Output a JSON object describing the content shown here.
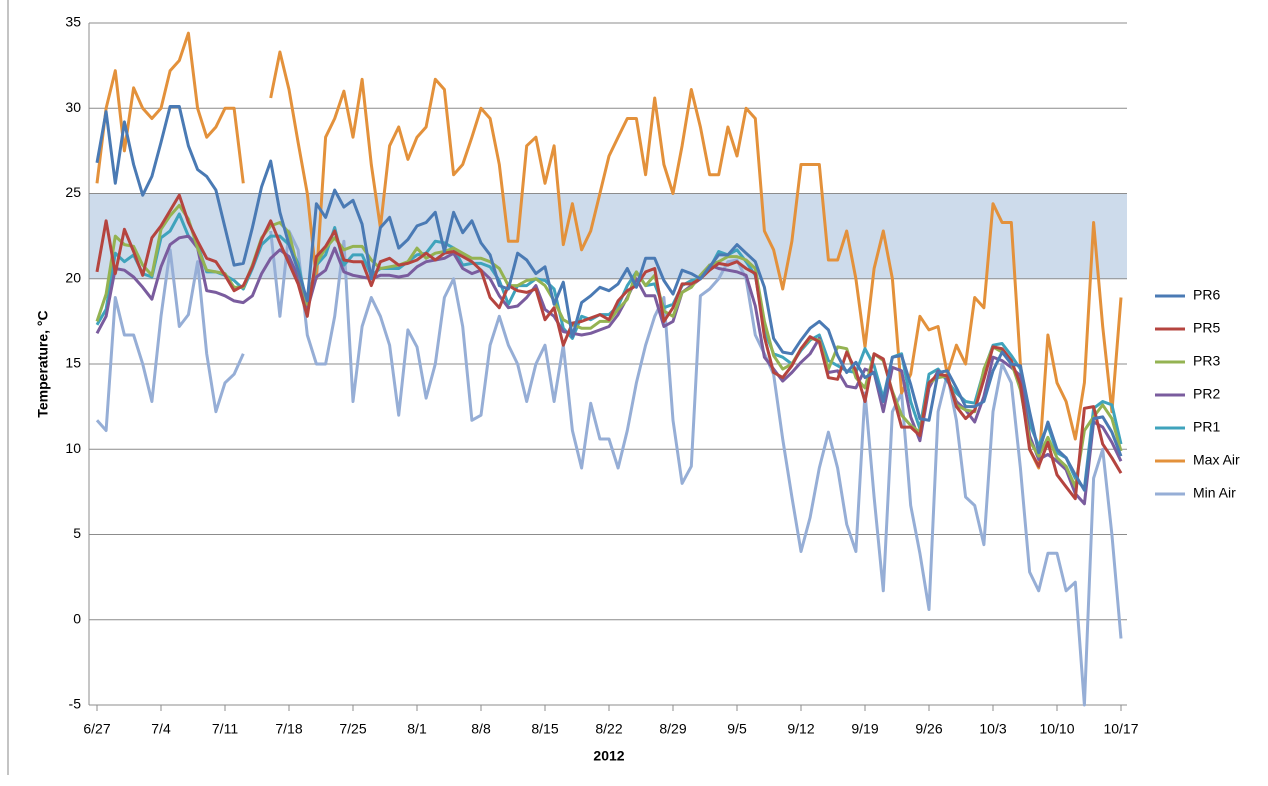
{
  "chart_data": {
    "type": "line",
    "x_label": "2012",
    "y_label": "Temperature, °C",
    "ylim": [
      -5,
      35
    ],
    "yticks": [
      -5,
      0,
      5,
      10,
      15,
      20,
      25,
      30,
      35
    ],
    "grid": true,
    "highlight_range": [
      20,
      25
    ],
    "highlight_color": "#cddbeb",
    "legend": "right",
    "categories": [
      "6/27",
      null,
      null,
      null,
      null,
      null,
      null,
      "7/4",
      null,
      null,
      null,
      null,
      null,
      null,
      "7/11",
      null,
      null,
      null,
      null,
      null,
      null,
      "7/18",
      null,
      null,
      null,
      null,
      null,
      null,
      "7/25",
      null,
      null,
      null,
      null,
      null,
      null,
      "8/1",
      null,
      null,
      null,
      null,
      null,
      null,
      "8/8",
      null,
      null,
      null,
      null,
      null,
      null,
      "8/15",
      null,
      null,
      null,
      null,
      null,
      null,
      "8/22",
      null,
      null,
      null,
      null,
      null,
      null,
      "8/29",
      null,
      null,
      null,
      null,
      null,
      null,
      "9/5",
      null,
      null,
      null,
      null,
      null,
      null,
      "9/12",
      null,
      null,
      null,
      null,
      null,
      null,
      "9/19",
      null,
      null,
      null,
      null,
      null,
      null,
      "9/26",
      null,
      null,
      null,
      null,
      null,
      null,
      "10/3",
      null,
      null,
      null,
      null,
      null,
      null,
      "10/10",
      null,
      null,
      null,
      null,
      null,
      null,
      "10/17"
    ],
    "series": [
      {
        "name": "PR6",
        "color": "#4a7ab4",
        "values": [
          26.8,
          29.8,
          25.6,
          29.2,
          26.7,
          24.9,
          26,
          28,
          30.1,
          30.1,
          27.8,
          26.4,
          26,
          25.2,
          23,
          20.8,
          20.9,
          23,
          25.4,
          26.9,
          23.9,
          22,
          20.5,
          18.7,
          24.4,
          23.6,
          25.2,
          24.2,
          24.6,
          23.2,
          20,
          23,
          23.6,
          21.8,
          22.3,
          23.1,
          23.3,
          23.9,
          21.6,
          23.9,
          22.7,
          23.4,
          22.1,
          21.4,
          19.6,
          19.4,
          21.5,
          21.1,
          20.3,
          20.7,
          18.5,
          19.8,
          16.6,
          18.6,
          19,
          19.5,
          19.3,
          19.7,
          20.6,
          19.5,
          21.2,
          21.2,
          19.9,
          19.1,
          20.5,
          20.3,
          20,
          20.7,
          21.4,
          21.4,
          22,
          21.5,
          21,
          19.5,
          16.5,
          15.7,
          15.6,
          16.4,
          17.1,
          17.5,
          17,
          15.5,
          14.5,
          15.1,
          14.2,
          14.5,
          12.8,
          15.4,
          15.5,
          13.8,
          11.8,
          11.7,
          14.5,
          14.6,
          13.6,
          12.5,
          12.5,
          12.8,
          14.6,
          15.7,
          15,
          14.9,
          12.2,
          9.8,
          11.6,
          10,
          9.5,
          8.5,
          7.6,
          11.8,
          11.9,
          11,
          9.6
        ]
      },
      {
        "name": "PR5",
        "color": "#b5443f",
        "values": [
          20.4,
          23.4,
          20.3,
          22.9,
          21.6,
          20.2,
          22.4,
          23.1,
          24,
          24.9,
          23.3,
          22.2,
          21.2,
          21,
          20.2,
          19.3,
          19.6,
          20.7,
          22.3,
          23.4,
          22.1,
          20.9,
          19.7,
          17.8,
          21.3,
          21.9,
          22.8,
          21.1,
          21,
          21,
          19.6,
          21,
          21.2,
          20.8,
          20.9,
          21.1,
          21.5,
          21.1,
          21.5,
          21.6,
          21.3,
          21,
          20.5,
          18.9,
          18.3,
          19.6,
          19.3,
          19.2,
          19.4,
          17.6,
          18.3,
          16.1,
          17.4,
          17.5,
          17.7,
          17.9,
          17.6,
          18.7,
          19.3,
          19.6,
          20.4,
          20.6,
          17.5,
          18.3,
          19.7,
          19.7,
          20,
          20.5,
          20.9,
          20.8,
          21,
          20.6,
          20.3,
          16.6,
          14.5,
          14.2,
          14.9,
          15.9,
          16.6,
          16.3,
          14.2,
          14.1,
          15.7,
          14.6,
          12.8,
          15.6,
          15.3,
          13.3,
          11.3,
          11.3,
          10.8,
          13.9,
          14.4,
          14.3,
          12.5,
          11.8,
          12.3,
          14.1,
          16,
          15.9,
          15.2,
          13.8,
          10,
          9,
          10.4,
          8.5,
          7.8,
          7.1,
          12.4,
          12.5,
          10.3,
          9.5,
          8.6
        ]
      },
      {
        "name": "PR3",
        "color": "#94b352",
        "values": [
          17.5,
          19.1,
          22.5,
          22,
          21.9,
          20.8,
          20.2,
          22.9,
          23.7,
          24.3,
          23.5,
          21.8,
          20.5,
          20.4,
          20.3,
          19.5,
          19.5,
          20.8,
          22.4,
          23.1,
          23.3,
          22.7,
          20.5,
          18.5,
          20.9,
          21.8,
          22.4,
          21.7,
          21.9,
          21.9,
          21.1,
          20.6,
          20.7,
          20.8,
          21,
          21.8,
          21.2,
          21.5,
          21.6,
          21.8,
          21.5,
          21.2,
          21.2,
          21,
          20.6,
          19.6,
          19.6,
          19.9,
          20,
          19.6,
          18.7,
          17.6,
          17.3,
          17.1,
          17.1,
          17.5,
          17.5,
          18.2,
          18.8,
          20.4,
          19.6,
          20.2,
          18.1,
          17.8,
          19.2,
          19.5,
          20.2,
          20.8,
          21,
          21.3,
          21.3,
          21.1,
          20.6,
          17.5,
          15.5,
          14.7,
          15,
          15.9,
          16.5,
          16.4,
          14.7,
          16,
          15.9,
          14.2,
          13.6,
          15.6,
          15.2,
          13.4,
          12,
          11.4,
          11,
          13.9,
          14.2,
          14.3,
          12.6,
          12.3,
          12.2,
          14.7,
          16,
          15.7,
          15.1,
          13.5,
          10.5,
          9.6,
          10.7,
          9.5,
          9,
          7.8,
          11.1,
          11.9,
          12.6,
          11.8,
          9.9
        ]
      },
      {
        "name": "PR2",
        "color": "#7a5c9e",
        "values": [
          16.8,
          17.8,
          20.6,
          20.5,
          20.1,
          19.5,
          18.8,
          20.7,
          22,
          22.4,
          22.5,
          21.8,
          19.3,
          19.2,
          19,
          18.7,
          18.6,
          19,
          20.3,
          21.2,
          21.7,
          21.3,
          20.1,
          18.2,
          20.1,
          20.5,
          21.8,
          20.4,
          20.2,
          20.1,
          20,
          20.2,
          20.2,
          20.1,
          20.2,
          20.7,
          21,
          21.1,
          21.2,
          21.5,
          20.6,
          20.3,
          20.5,
          20,
          19,
          18.3,
          18.4,
          18.9,
          19.6,
          18.2,
          17.8,
          16.9,
          16.8,
          16.7,
          16.8,
          17,
          17.2,
          17.9,
          18.9,
          20,
          19,
          19,
          17.2,
          17.5,
          19.2,
          19.6,
          20,
          20.8,
          20.6,
          20.5,
          20.4,
          20.2,
          18.4,
          15.4,
          14.7,
          14,
          14.5,
          15.1,
          15.6,
          16.5,
          14.5,
          14.6,
          13.7,
          13.6,
          14.7,
          14.5,
          12.2,
          14.8,
          14.6,
          11.9,
          10.5,
          13.6,
          14.6,
          14.1,
          12.8,
          12.3,
          11.6,
          13.1,
          15.4,
          15.2,
          14.8,
          14.3,
          10.8,
          9.4,
          9.7,
          9.3,
          8.8,
          7.4,
          6.8,
          11.6,
          11.3,
          10.4,
          9.3
        ]
      },
      {
        "name": "PR1",
        "color": "#3fa3bc",
        "values": [
          17.3,
          18.2,
          21.5,
          21,
          21.4,
          20.3,
          20.1,
          22.4,
          22.8,
          23.8,
          22.5,
          22,
          20.4,
          20.4,
          20.2,
          19.9,
          19.4,
          20.6,
          22,
          22.5,
          22.5,
          22,
          20.9,
          18.4,
          20.8,
          21.4,
          23,
          20.8,
          21.4,
          21.4,
          20.2,
          20.6,
          20.6,
          20.6,
          21,
          21.4,
          21.5,
          22.2,
          22.1,
          21.8,
          20.8,
          20.9,
          20.9,
          20.7,
          19.9,
          18.5,
          19.6,
          19.6,
          20,
          19.9,
          19.4,
          17.1,
          16.5,
          17.8,
          17.6,
          17.9,
          17.9,
          18.4,
          19.6,
          20.4,
          19.6,
          19.7,
          18.3,
          18.5,
          19.6,
          19.9,
          20,
          20.6,
          21.6,
          21.4,
          21.7,
          21,
          20.2,
          17,
          15.6,
          15.4,
          15,
          15.8,
          16.4,
          16.7,
          15.2,
          14.9,
          14.6,
          14.5,
          15.9,
          14.9,
          13,
          15.4,
          15.6,
          12.8,
          11.2,
          14.4,
          14.7,
          14,
          13.3,
          12.8,
          12.7,
          14.6,
          16.1,
          16.2,
          15.5,
          14.7,
          11.5,
          10.2,
          11.4,
          9.8,
          9.5,
          8.3,
          7.7,
          12.4,
          12.8,
          12.6,
          10.3
        ]
      },
      {
        "name": "Max Air",
        "color": "#e3913b",
        "values": [
          25.6,
          30,
          32.2,
          27.5,
          31.2,
          30,
          29.4,
          30,
          32.2,
          32.8,
          34.4,
          30,
          28.3,
          28.9,
          30,
          30,
          25.6,
          null,
          null,
          30.6,
          33.3,
          31.1,
          28,
          25,
          20,
          28.3,
          29.4,
          31,
          28.3,
          31.7,
          26.7,
          23,
          27.8,
          28.9,
          27,
          28.3,
          28.9,
          31.7,
          31.1,
          26.1,
          26.7,
          28.3,
          30,
          29.4,
          26.7,
          22.2,
          22.2,
          27.8,
          28.3,
          25.6,
          27.8,
          22,
          24.4,
          21.7,
          22.8,
          25,
          27.2,
          28.3,
          29.4,
          29.4,
          26.1,
          30.6,
          26.7,
          25,
          27.8,
          31.1,
          28.9,
          26.1,
          26.1,
          28.9,
          27.2,
          30,
          29.4,
          22.8,
          21.7,
          19.4,
          22.2,
          26.7,
          26.7,
          26.7,
          21.1,
          21.1,
          22.8,
          20,
          16,
          20.6,
          22.8,
          20,
          13.3,
          14.4,
          17.8,
          17,
          17.2,
          14.4,
          16.1,
          15,
          18.9,
          18.3,
          24.4,
          23.3,
          23.3,
          15,
          10,
          8.9,
          16.7,
          13.9,
          12.8,
          10.6,
          13.9,
          23.3,
          17.2,
          12.2,
          18.9
        ]
      },
      {
        "name": "Min Air",
        "color": "#96aed6",
        "values": [
          11.7,
          11.1,
          18.9,
          16.7,
          16.7,
          15,
          12.8,
          17.8,
          21.7,
          17.2,
          17.9,
          21,
          15.6,
          12.2,
          13.9,
          14.4,
          15.6,
          null,
          null,
          22.8,
          17.8,
          22.8,
          21.7,
          16.7,
          15,
          15,
          17.8,
          22.2,
          12.8,
          17.2,
          18.9,
          17.8,
          16.1,
          12,
          17,
          16,
          13,
          15,
          18.9,
          20,
          17.2,
          11.7,
          12,
          16.1,
          17.8,
          16.1,
          15,
          12.8,
          15,
          16.1,
          12.8,
          16.1,
          11.1,
          8.9,
          12.7,
          10.6,
          10.6,
          8.9,
          11.1,
          13.9,
          16.1,
          17.8,
          18.9,
          11.7,
          8,
          9,
          19,
          19.4,
          20,
          21,
          21.1,
          20,
          16.7,
          15.6,
          14.4,
          10.6,
          7.2,
          4,
          6,
          8.9,
          11,
          8.9,
          5.6,
          4,
          13.3,
          7.2,
          1.7,
          12.2,
          13.3,
          6.7,
          3.9,
          0.6,
          12.2,
          14.4,
          11.7,
          7.2,
          6.7,
          4.4,
          12.2,
          15,
          13.9,
          8.9,
          2.8,
          1.7,
          3.9,
          3.9,
          1.7,
          2.2,
          -5,
          8.3,
          10,
          5,
          -1.1
        ]
      }
    ]
  }
}
